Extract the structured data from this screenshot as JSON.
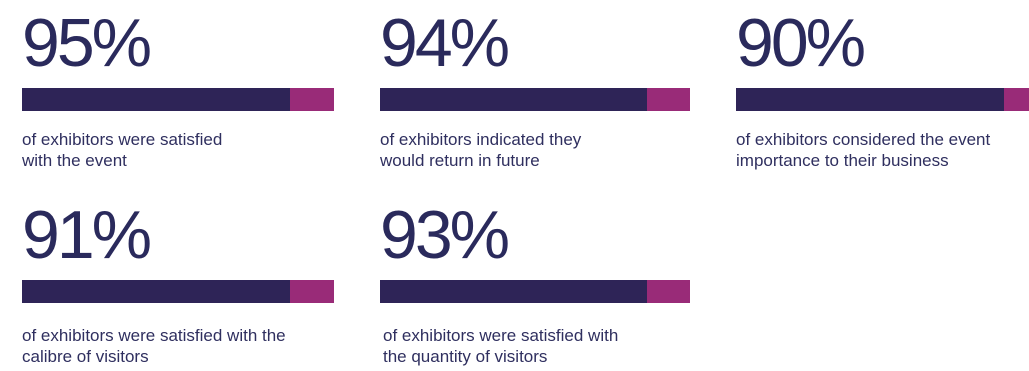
{
  "chart_data": {
    "type": "bar",
    "stats": [
      {
        "value": "95%",
        "percent": 95,
        "caption": "of exhibitors were satisfied\nwith the event"
      },
      {
        "value": "94%",
        "percent": 94,
        "caption": "of exhibitors indicated they\nwould return in future"
      },
      {
        "value": "90%",
        "percent": 90,
        "caption": "of exhibitors considered the event\nimportance to their business"
      },
      {
        "value": "91%",
        "percent": 91,
        "caption": "of exhibitors were satisfied with the\ncalibre of visitors"
      },
      {
        "value": "93%",
        "percent": 93,
        "caption": "of exhibitors were satisfied with\nthe quantity of visitors"
      }
    ],
    "colors": {
      "value_text": "#2a2a5c",
      "bar_fill": "#2e2457",
      "bar_remainder": "#992b78"
    }
  }
}
